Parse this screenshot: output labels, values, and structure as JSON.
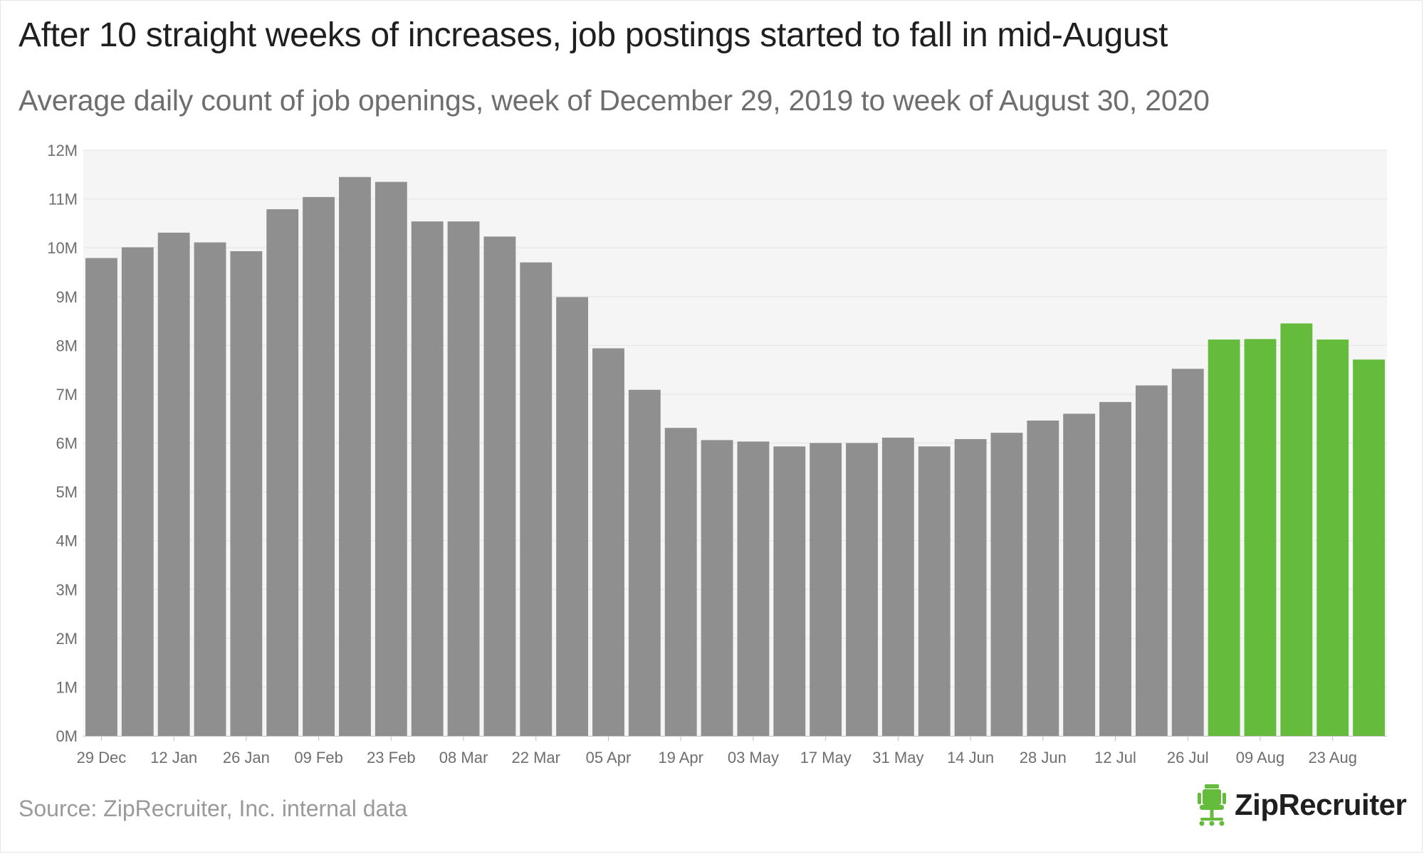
{
  "header": {
    "title": "After 10 straight weeks of increases, job postings started to fall in mid-August",
    "subtitle": "Average daily count of job openings, week of December 29, 2019 to week of August 30, 2020"
  },
  "footer": {
    "source": "Source: ZipRecruiter, Inc. internal data",
    "logo_text": "ZipRecruiter",
    "logo_icon": "chair-icon"
  },
  "colors": {
    "bar_default": "#8f8f8f",
    "bar_highlight": "#64bb3c",
    "plot_background": "#f5f5f5",
    "gridline": "#e4e4e4",
    "axis_line": "#bdbdbd"
  },
  "chart_data": {
    "type": "bar",
    "title": "After 10 straight weeks of increases, job postings started to fall in mid-August",
    "subtitle": "Average daily count of job openings, week of December 29, 2019 to week of August 30, 2020",
    "xlabel": "",
    "ylabel": "",
    "ylim": [
      0,
      12
    ],
    "y_unit_suffix": "M",
    "y_ticks": [
      "0M",
      "1M",
      "2M",
      "3M",
      "4M",
      "5M",
      "6M",
      "7M",
      "8M",
      "9M",
      "10M",
      "11M",
      "12M"
    ],
    "x_tick_labels": [
      "29 Dec",
      "12 Jan",
      "26 Jan",
      "09 Feb",
      "23 Feb",
      "08 Mar",
      "22 Mar",
      "05 Apr",
      "19 Apr",
      "03 May",
      "17 May",
      "31 May",
      "14 Jun",
      "28 Jun",
      "12 Jul",
      "26 Jul",
      "09 Aug",
      "23 Aug"
    ],
    "categories": [
      "29 Dec",
      "05 Jan",
      "12 Jan",
      "19 Jan",
      "26 Jan",
      "02 Feb",
      "09 Feb",
      "16 Feb",
      "23 Feb",
      "01 Mar",
      "08 Mar",
      "15 Mar",
      "22 Mar",
      "29 Mar",
      "05 Apr",
      "12 Apr",
      "19 Apr",
      "26 Apr",
      "03 May",
      "10 May",
      "17 May",
      "24 May",
      "31 May",
      "07 Jun",
      "14 Jun",
      "21 Jun",
      "28 Jun",
      "05 Jul",
      "12 Jul",
      "19 Jul",
      "26 Jul",
      "02 Aug",
      "09 Aug",
      "16 Aug",
      "23 Aug",
      "30 Aug"
    ],
    "values": [
      9.79,
      10.01,
      10.31,
      10.11,
      9.93,
      10.79,
      11.04,
      11.45,
      11.35,
      10.54,
      10.54,
      10.23,
      9.7,
      8.99,
      7.94,
      7.09,
      6.31,
      6.06,
      6.03,
      5.93,
      6.0,
      6.0,
      6.11,
      5.93,
      6.08,
      6.21,
      6.46,
      6.6,
      6.84,
      7.18,
      7.52,
      8.12,
      8.13,
      8.45,
      8.12,
      7.71
    ],
    "highlight_from_category": "02 Aug",
    "grid": true,
    "legend": "none"
  }
}
